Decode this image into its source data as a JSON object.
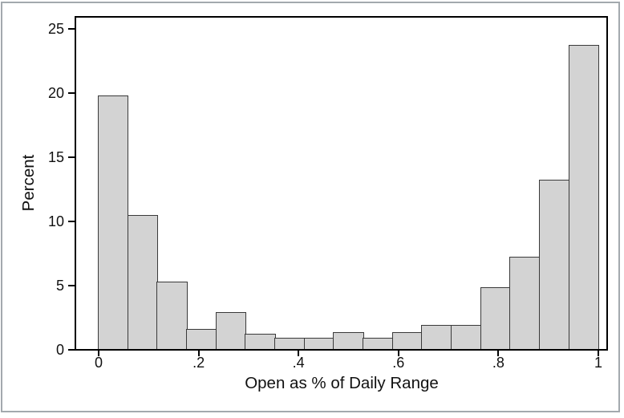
{
  "chart_data": {
    "type": "bar",
    "subtype": "histogram",
    "title": "",
    "xlabel": "Open as % of Daily Range",
    "ylabel": "Percent",
    "x_tick_labels": [
      "0",
      ".2",
      ".4",
      ".6",
      ".8",
      "1"
    ],
    "x_tick_values": [
      0,
      0.2,
      0.4,
      0.6,
      0.8,
      1
    ],
    "y_tick_labels": [
      "0",
      "5",
      "10",
      "15",
      "20",
      "25"
    ],
    "y_tick_values": [
      0,
      5,
      10,
      15,
      20,
      25
    ],
    "xlim": [
      -0.046,
      1.018
    ],
    "ylim": [
      0,
      26
    ],
    "grid": false,
    "legend": false,
    "n_bins": 17,
    "bin_width": 0.0588,
    "bin_edges": [
      0,
      0.0588,
      0.1176,
      0.1765,
      0.2353,
      0.2941,
      0.3529,
      0.4118,
      0.4706,
      0.5294,
      0.5882,
      0.6471,
      0.7059,
      0.7647,
      0.8235,
      0.8824,
      0.9412,
      1
    ],
    "values_percent": [
      19.8,
      10.5,
      5.3,
      1.6,
      2.95,
      1.25,
      0.95,
      0.95,
      1.4,
      0.95,
      1.4,
      1.95,
      1.95,
      4.85,
      7.25,
      13.25,
      23.75
    ],
    "colors": {
      "bar_fill": "#d3d3d3",
      "bar_stroke": "#3a3a3a",
      "axis": "#000000",
      "frame_border": "#a3a9ae",
      "background": "#ffffff",
      "text": "#111111"
    }
  }
}
